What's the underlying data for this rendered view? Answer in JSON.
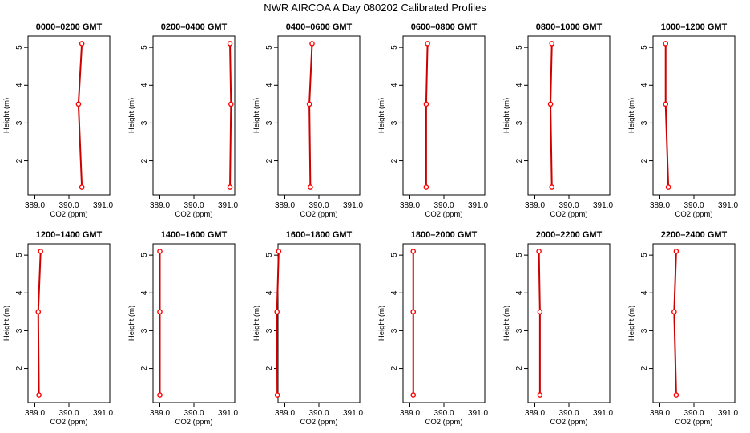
{
  "title": "NWR AIRCOA A  Day 080202  Calibrated Profiles",
  "chart_data": {
    "type": "line",
    "layout": "2 rows x 6 panels",
    "xlabel": "CO2 (ppm)",
    "ylabel": "Height (m)",
    "xlim": [
      388.8,
      391.2
    ],
    "ylim": [
      1.1,
      5.3
    ],
    "xticks": [
      "389.0",
      "390.0",
      "391.0"
    ],
    "yticks": [
      "2",
      "3",
      "4",
      "5"
    ],
    "point_color": "#ff0000",
    "line_color": "#cc0000",
    "panels": [
      {
        "title": "0000–0200 GMT",
        "points": [
          {
            "x": 390.38,
            "y": 1.3
          },
          {
            "x": 390.28,
            "y": 3.5
          },
          {
            "x": 390.38,
            "y": 5.1
          }
        ]
      },
      {
        "title": "0200–0400 GMT",
        "points": [
          {
            "x": 391.06,
            "y": 1.3
          },
          {
            "x": 391.09,
            "y": 3.5
          },
          {
            "x": 391.06,
            "y": 5.1
          }
        ]
      },
      {
        "title": "0400–0600 GMT",
        "points": [
          {
            "x": 389.75,
            "y": 1.3
          },
          {
            "x": 389.72,
            "y": 3.5
          },
          {
            "x": 389.8,
            "y": 5.1
          }
        ]
      },
      {
        "title": "0600–0800 GMT",
        "points": [
          {
            "x": 389.48,
            "y": 1.3
          },
          {
            "x": 389.48,
            "y": 3.5
          },
          {
            "x": 389.52,
            "y": 5.1
          }
        ]
      },
      {
        "title": "0800–1000 GMT",
        "points": [
          {
            "x": 389.5,
            "y": 1.3
          },
          {
            "x": 389.46,
            "y": 3.5
          },
          {
            "x": 389.5,
            "y": 5.1
          }
        ]
      },
      {
        "title": "1000–1200 GMT",
        "points": [
          {
            "x": 389.25,
            "y": 1.3
          },
          {
            "x": 389.17,
            "y": 3.5
          },
          {
            "x": 389.17,
            "y": 5.1
          }
        ]
      },
      {
        "title": "1200–1400 GMT",
        "points": [
          {
            "x": 389.12,
            "y": 1.3
          },
          {
            "x": 389.1,
            "y": 3.5
          },
          {
            "x": 389.17,
            "y": 5.1
          }
        ]
      },
      {
        "title": "1400–1600 GMT",
        "points": [
          {
            "x": 389.0,
            "y": 1.3
          },
          {
            "x": 389.0,
            "y": 3.5
          },
          {
            "x": 389.0,
            "y": 5.1
          }
        ]
      },
      {
        "title": "1600–1800 GMT",
        "points": [
          {
            "x": 388.78,
            "y": 1.3
          },
          {
            "x": 388.77,
            "y": 3.5
          },
          {
            "x": 388.82,
            "y": 5.1
          }
        ]
      },
      {
        "title": "1800–2000 GMT",
        "points": [
          {
            "x": 389.1,
            "y": 1.3
          },
          {
            "x": 389.1,
            "y": 3.5
          },
          {
            "x": 389.1,
            "y": 5.1
          }
        ]
      },
      {
        "title": "2000–2200 GMT",
        "points": [
          {
            "x": 389.15,
            "y": 1.3
          },
          {
            "x": 389.15,
            "y": 3.5
          },
          {
            "x": 389.12,
            "y": 5.1
          }
        ]
      },
      {
        "title": "2200–2400 GMT",
        "points": [
          {
            "x": 389.48,
            "y": 1.3
          },
          {
            "x": 389.42,
            "y": 3.5
          },
          {
            "x": 389.48,
            "y": 5.1
          }
        ]
      }
    ]
  }
}
